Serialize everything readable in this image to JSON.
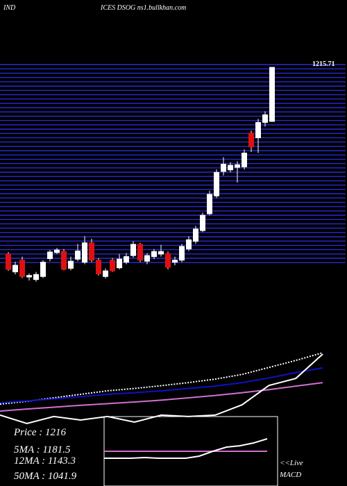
{
  "header": {
    "left": "IND",
    "right": "ICES DSOG ns1.bullkhan.com"
  },
  "info": [
    "Price : 1216",
    "5MA : 1181.5",
    "12MA : 1143.3",
    "50MA : 1041.9"
  ],
  "live": "<<Live",
  "macd_label": "MACD",
  "chart_data": [
    {
      "type": "candlestick",
      "last_price_label": "1215.71",
      "ylim": [
        790,
        1216
      ],
      "open": [
        850,
        815,
        838,
        805,
        800,
        806,
        841,
        853,
        855,
        822,
        840,
        834,
        872,
        838,
        806,
        838,
        823,
        834,
        847,
        869,
        836,
        845,
        850,
        851,
        834,
        838,
        860,
        875,
        896,
        929,
        964,
        1012,
        1015,
        1020,
        1021,
        1087,
        1078,
        1108,
        1110
      ],
      "high": [
        854,
        835,
        845,
        812,
        815,
        838,
        858,
        862,
        860,
        845,
        870,
        885,
        880,
        842,
        822,
        842,
        850,
        852,
        875,
        872,
        852,
        860,
        868,
        855,
        845,
        870,
        885,
        905,
        931,
        974,
        1016,
        1040,
        1030,
        1032,
        1055,
        1092,
        1115,
        1130,
        1216
      ],
      "low": [
        817,
        810,
        803,
        798,
        796,
        803,
        836,
        850,
        818,
        818,
        836,
        830,
        834,
        808,
        802,
        815,
        820,
        830,
        843,
        834,
        830,
        840,
        845,
        820,
        828,
        834,
        856,
        870,
        893,
        926,
        960,
        1004,
        1010,
        990,
        1016,
        1050,
        1048,
        1100,
        1110
      ],
      "close": [
        820,
        828,
        806,
        808,
        810,
        834,
        854,
        858,
        820,
        836,
        856,
        872,
        838,
        811,
        817,
        817,
        840,
        845,
        869,
        838,
        847,
        855,
        855,
        824,
        838,
        865,
        878,
        899,
        926,
        967,
        1010,
        1026,
        1024,
        1025,
        1048,
        1060,
        1108,
        1123,
        1216
      ]
    },
    {
      "type": "line",
      "ylim": [
        800,
        1216
      ],
      "x": [
        0,
        1,
        2,
        3,
        4,
        5,
        6,
        7,
        8,
        9,
        10,
        11,
        12
      ],
      "series": [
        {
          "color": "#ffffff",
          "dash": true,
          "values": [
            883,
            895,
            910,
            925,
            940,
            950,
            962,
            975,
            990,
            1010,
            1040,
            1070,
            1103
          ]
        },
        {
          "color": "#1010c8",
          "values": [
            889,
            897,
            905,
            915,
            925,
            932,
            940,
            950,
            960,
            975,
            995,
            1018,
            1038
          ]
        },
        {
          "color": "#d070d0",
          "values": [
            853,
            862,
            870,
            878,
            885,
            892,
            900,
            910,
            920,
            932,
            945,
            960,
            975
          ]
        },
        {
          "color": "#ffffff",
          "values": [
            836,
            800,
            830,
            815,
            830,
            806,
            836,
            830,
            836,
            880,
            963,
            993,
            1097
          ]
        }
      ]
    },
    {
      "type": "line",
      "ylim": [
        0,
        10
      ],
      "x": [
        0,
        1,
        2,
        3,
        4,
        5,
        6,
        7,
        8,
        9,
        10,
        11,
        12
      ],
      "series": [
        {
          "color": "#d070d0",
          "values": [
            5,
            5,
            5,
            5,
            5,
            5,
            5,
            5,
            5,
            5,
            5,
            5,
            5
          ]
        },
        {
          "color": "#ffffff",
          "values": [
            4,
            4,
            4,
            4.1,
            4,
            4,
            4,
            4.3,
            5,
            5.6,
            5.8,
            6.2,
            6.8
          ]
        }
      ]
    }
  ]
}
